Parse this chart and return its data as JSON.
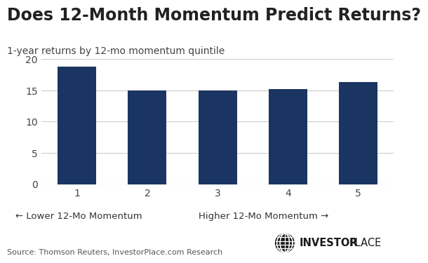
{
  "title": "Does 12-Month Momentum Predict Returns?",
  "subtitle": "1-year returns by 12-mo momentum quintile",
  "categories": [
    1,
    2,
    3,
    4,
    5
  ],
  "values": [
    18.8,
    15.0,
    15.0,
    15.2,
    16.3
  ],
  "bar_color": "#1a3562",
  "ylim": [
    0,
    20
  ],
  "yticks": [
    0,
    5,
    10,
    15,
    20
  ],
  "xlabel_left": "← Lower 12-Mo Momentum",
  "xlabel_right": "Higher 12-Mo Momentum →",
  "source_text": "Source: Thomson Reuters, InvestorPlace.com Research",
  "background_color": "#ffffff",
  "title_fontsize": 17,
  "subtitle_fontsize": 10,
  "tick_fontsize": 10,
  "bar_width": 0.55,
  "grid_color": "#cccccc",
  "title_color": "#222222",
  "subtitle_color": "#444444",
  "source_color": "#555555",
  "logo_bold": "INVESTOR",
  "logo_normal": "PLACE"
}
